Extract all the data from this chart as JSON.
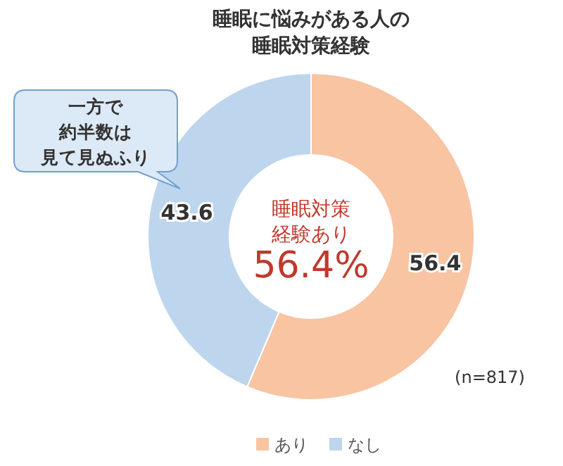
{
  "chart_data": {
    "type": "donut",
    "title": "睡眠に悩みがある人の睡眠対策経験",
    "categories": [
      "あり",
      "なし"
    ],
    "values": [
      56.4,
      43.6
    ],
    "colors": [
      "#f8c4a2",
      "#bdd6ee"
    ],
    "data_labels": true,
    "legend": "bottom",
    "annotations": [
      "一方で",
      "約半数は",
      "見て見ぬふり",
      "睡眠対策",
      "経験あり",
      "56.4%",
      "(n=817)"
    ]
  }
}
